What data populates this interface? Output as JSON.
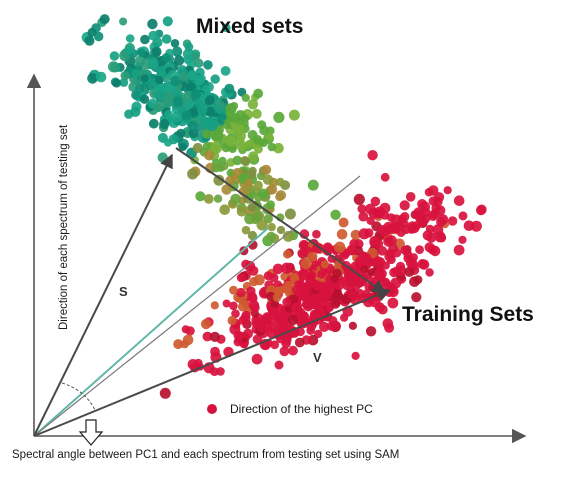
{
  "titles": {
    "mixed": "Mixed sets",
    "training": "Training Sets"
  },
  "axes": {
    "x_label": "Spectral angle between PC1 and each spectrum from testing set using SAM",
    "y_label": "Direction of each spectrum of testing set"
  },
  "vectors": {
    "s": "S",
    "v": "V"
  },
  "legend": {
    "label": "Direction of the highest PC"
  },
  "colors": {
    "mixed_cluster": "#14957a",
    "mixed_transition": "#5aa83a",
    "training_cluster": "#d8123e",
    "training_orange": "#cf5a2f",
    "arrow": "#4a4a4a",
    "teal_line": "#5fb8a8"
  }
}
